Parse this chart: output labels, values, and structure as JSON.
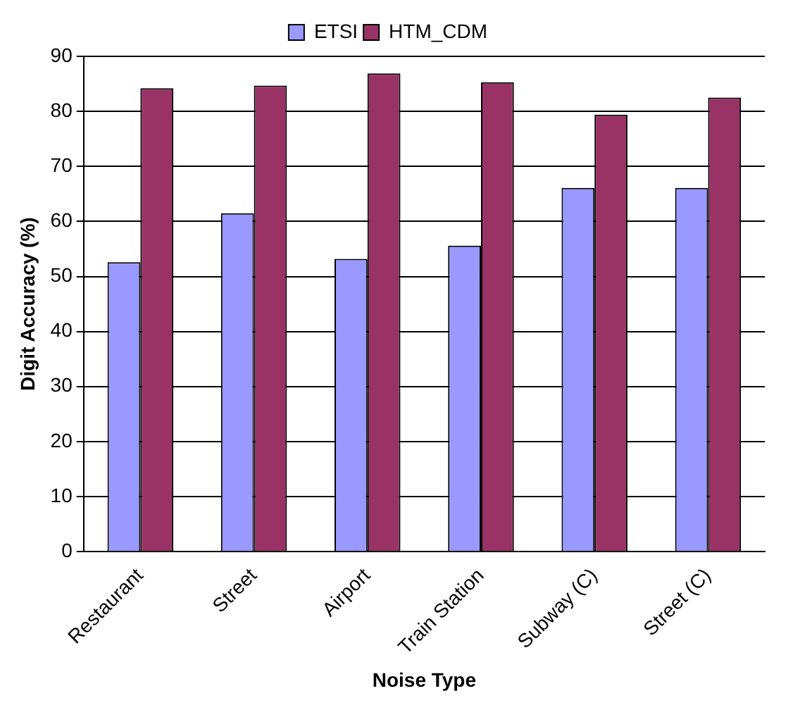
{
  "chart_data": {
    "type": "bar",
    "xlabel": "Noise Type",
    "ylabel": "Digit Accuracy (%)",
    "categories": [
      "Restaurant",
      "Street",
      "Airport",
      "Train Station",
      "Subway (C)",
      "Street (C)"
    ],
    "series": [
      {
        "name": "ETSI",
        "color": "#9999ff",
        "values": [
          52.6,
          61.5,
          53.2,
          55.6,
          66.1,
          66.1
        ]
      },
      {
        "name": "HTM_CDM",
        "color": "#993366",
        "values": [
          84.2,
          84.7,
          86.9,
          85.3,
          79.4,
          82.5
        ]
      }
    ],
    "ylim": [
      0,
      90
    ],
    "yticks": [
      0,
      10,
      20,
      30,
      40,
      50,
      60,
      70,
      80,
      90
    ],
    "grid": "y",
    "legend": "top"
  }
}
